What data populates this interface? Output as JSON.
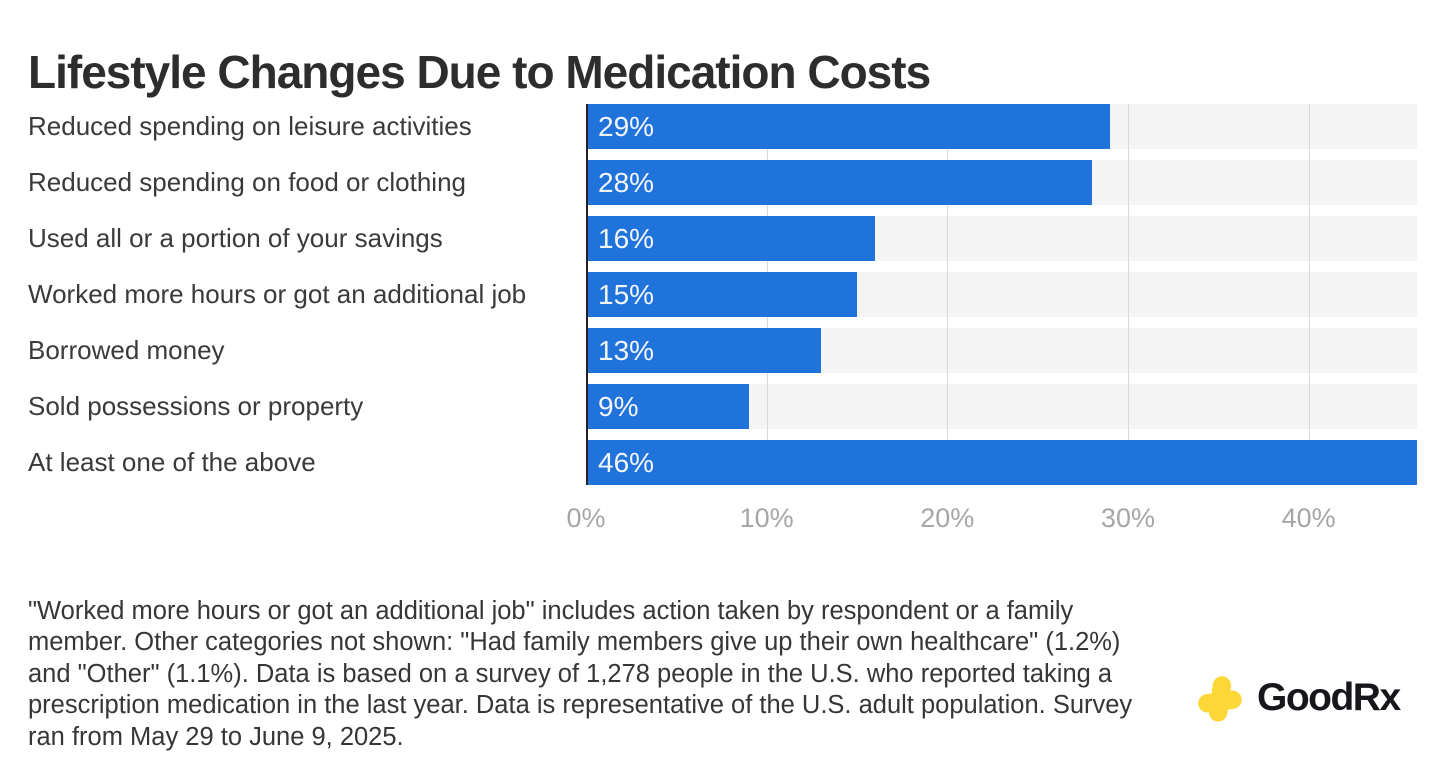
{
  "chart_data": {
    "type": "bar",
    "orientation": "horizontal",
    "title": "Lifestyle Changes Due to Medication Costs",
    "categories": [
      "Reduced spending on leisure activities",
      "Reduced spending on food or clothing",
      "Used all or a portion of your savings",
      "Worked more hours or got an additional job",
      "Borrowed money",
      "Sold possessions or property",
      "At least one of the above"
    ],
    "values": [
      29,
      28,
      16,
      15,
      13,
      9,
      46
    ],
    "value_labels": [
      "29%",
      "28%",
      "16%",
      "15%",
      "13%",
      "9%",
      "46%"
    ],
    "xlabel": "",
    "ylabel": "",
    "xlim": [
      0,
      46
    ],
    "xticks": [
      0,
      10,
      20,
      30,
      40
    ],
    "xtick_labels": [
      "0%",
      "10%",
      "20%",
      "30%",
      "40%"
    ],
    "grid": true,
    "legend": "none",
    "bar_color": "#2173dc",
    "track_color": "#f4f4f4",
    "gridline_color": "#d9d9d9",
    "axis_line_color": "#222222",
    "bar_label_color": "#f3f5f9",
    "tick_label_color": "#a6a6a6"
  },
  "footnote": {
    "text": "\"Worked more hours or got an additional job\" includes action taken by respondent or a family member. Other categories not shown: \"Had family members give up their own healthcare\" (1.2%) and \"Other\" (1.1%). Data is based on a survey of 1,278 people in the U.S. who reported taking a prescription medication in the last year. Data is representative of the U.S. adult population. Survey ran from May 29 to June 9, 2025."
  },
  "logo": {
    "text": "GoodRx",
    "icon": "goodrx-cross-icon",
    "icon_color": "#fcd736"
  }
}
